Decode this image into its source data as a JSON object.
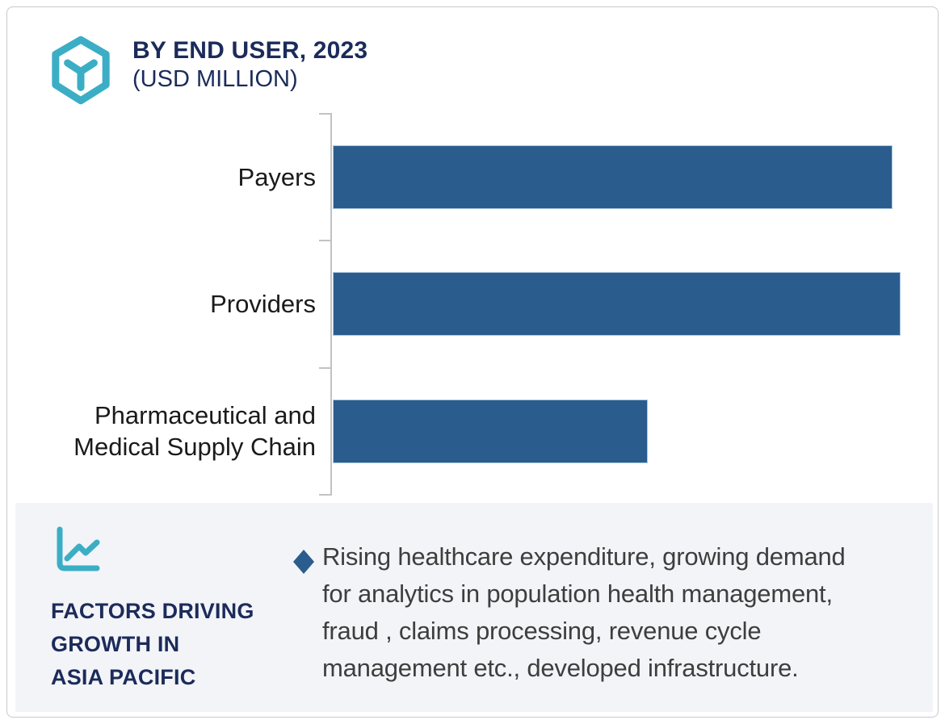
{
  "header": {
    "title_line1": "BY END USER, 2023",
    "title_line2": "(USD MILLION)",
    "logo_icon": "hexagon-y-logo",
    "title_color": "#1b2b5a",
    "logo_color": "#3baec6"
  },
  "chart_data": {
    "type": "bar",
    "orientation": "horizontal",
    "title": "BY END USER, 2023 (USD MILLION)",
    "categories": [
      "Payers",
      "Providers",
      "Pharmaceutical and Medical Supply Chain"
    ],
    "series": [
      {
        "name": "2023",
        "values_relative": [
          98.6,
          100,
          55.5
        ]
      }
    ],
    "value_axis_labels_shown": false,
    "data_labels_shown": false,
    "legend": "none",
    "grid": "off",
    "bar_color": "#2b5c8e",
    "axis_color": "#c2c2c2",
    "note": "No numeric axis or data labels visible; values_relative are bar lengths as % of longest bar (Providers)."
  },
  "factors_panel": {
    "icon": "line-chart-icon",
    "heading_lines": [
      "FACTORS DRIVING",
      "GROWTH IN",
      "ASIA PACIFIC"
    ],
    "heading_color": "#1b2b5a",
    "bullet_icon": "diamond-bullet",
    "bullet_lines": [
      "Rising healthcare expenditure, growing demand",
      "for analytics in population health management,",
      "fraud , claims processing, revenue cycle",
      "management etc., developed infrastructure."
    ],
    "bullet_text": "Rising healthcare expenditure, growing demand for analytics in population health management, fraud , claims processing, revenue cycle management etc., developed infrastructure.",
    "panel_bg": "#f3f4f8"
  }
}
